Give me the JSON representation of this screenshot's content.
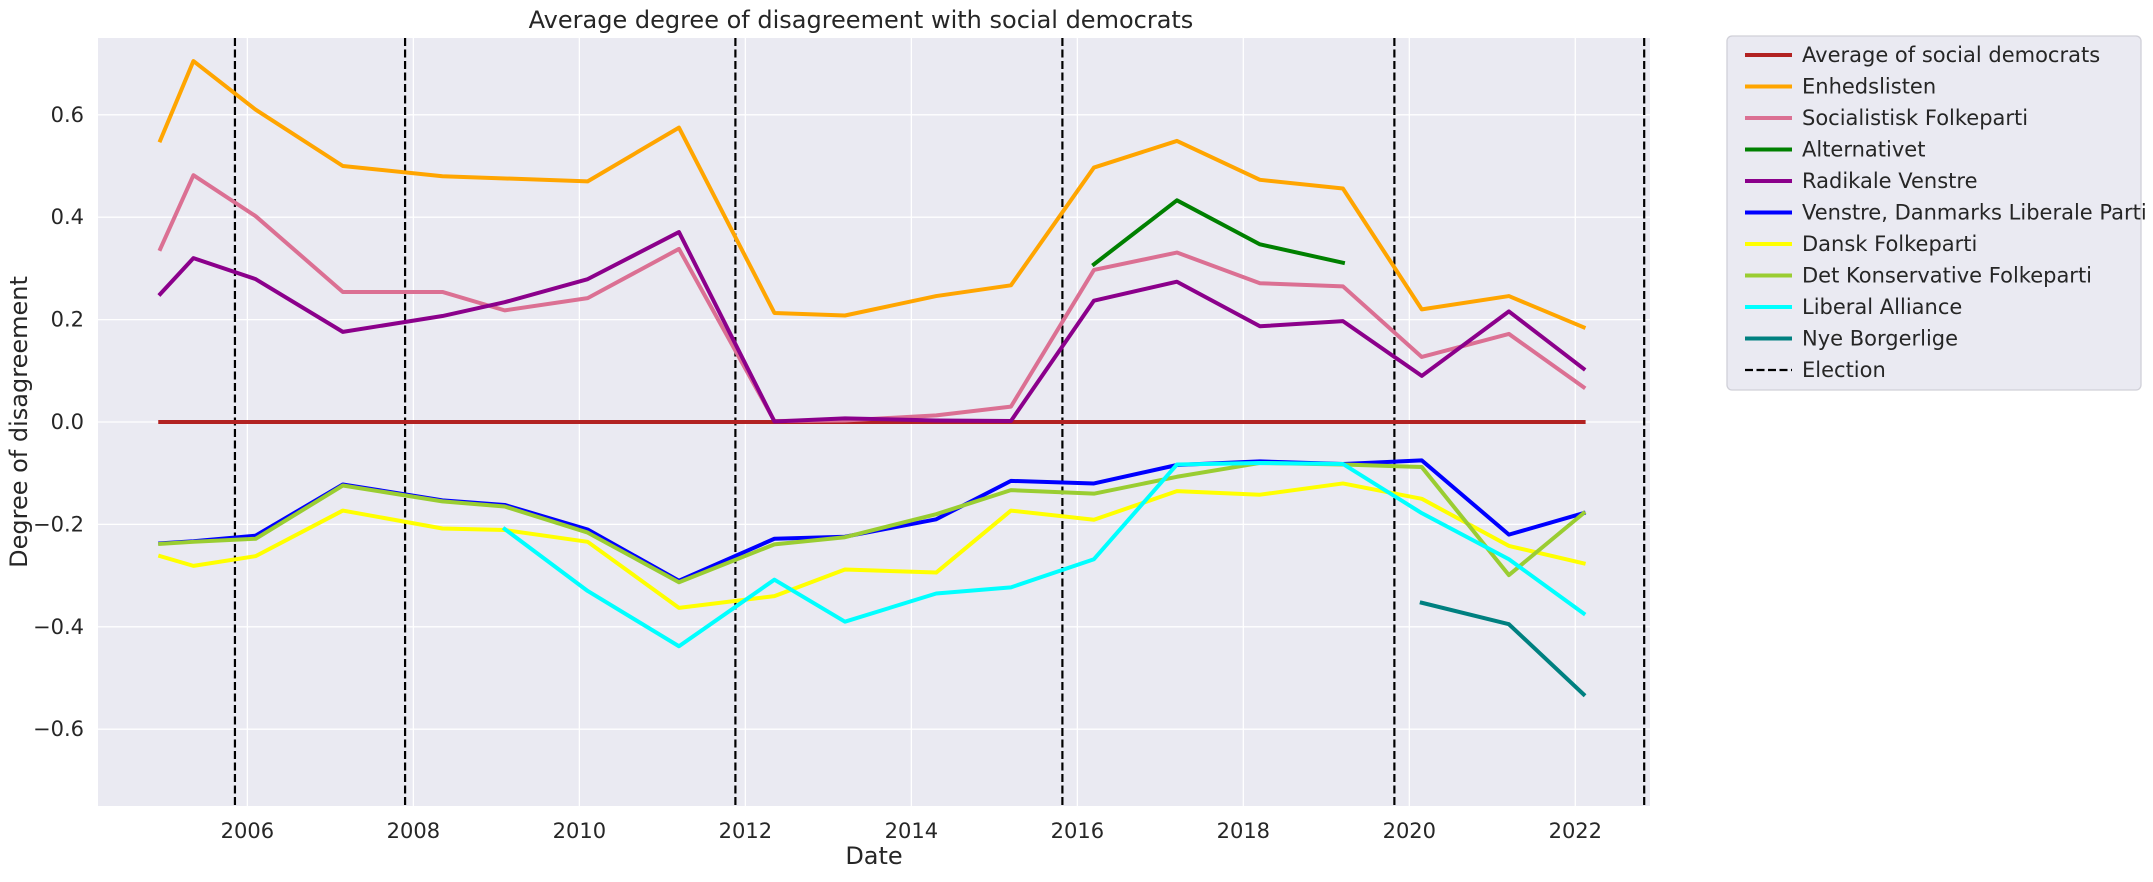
{
  "chart_data": {
    "type": "line",
    "title": "Average degree of disagreement with social democrats",
    "xlabel": "Date",
    "ylabel": "Degree of disagreement",
    "xlim": [
      2004.2,
      2022.9
    ],
    "ylim": [
      -0.75,
      0.75
    ],
    "x_ticks": [
      2006,
      2008,
      2010,
      2012,
      2014,
      2016,
      2018,
      2020,
      2022
    ],
    "x_tick_labels": [
      "2006",
      "2008",
      "2010",
      "2012",
      "2014",
      "2016",
      "2018",
      "2020",
      "2022"
    ],
    "y_ticks": [
      -0.6,
      -0.4,
      -0.2,
      0.0,
      0.2,
      0.4,
      0.6
    ],
    "y_tick_labels": [
      "−0.6",
      "−0.4",
      "−0.2",
      "0.0",
      "0.2",
      "0.4",
      "0.6"
    ],
    "grid": true,
    "legend_position": "outside-right",
    "background_color": "#eaeaf2",
    "grid_color": "#ffffff",
    "series": [
      {
        "name": "Average of social democrats",
        "color": "#b22222",
        "points": [
          [
            2004.95,
            0.0
          ],
          [
            2022.1,
            0.0
          ]
        ]
      },
      {
        "name": "Enhedslisten",
        "color": "#ffa500",
        "points": [
          [
            2004.95,
            0.55
          ],
          [
            2005.35,
            0.705
          ],
          [
            2006.1,
            0.61
          ],
          [
            2007.15,
            0.5
          ],
          [
            2008.35,
            0.48
          ],
          [
            2010.1,
            0.47
          ],
          [
            2011.2,
            0.575
          ],
          [
            2012.35,
            0.213
          ],
          [
            2013.2,
            0.208
          ],
          [
            2014.3,
            0.246
          ],
          [
            2015.2,
            0.267
          ],
          [
            2016.2,
            0.497
          ],
          [
            2017.2,
            0.549
          ],
          [
            2018.2,
            0.473
          ],
          [
            2019.2,
            0.456
          ],
          [
            2020.15,
            0.22
          ],
          [
            2021.2,
            0.246
          ],
          [
            2022.1,
            0.185
          ]
        ]
      },
      {
        "name": "Socialistisk Folkeparti",
        "color": "#db7093",
        "points": [
          [
            2004.95,
            0.338
          ],
          [
            2005.35,
            0.482
          ],
          [
            2006.1,
            0.402
          ],
          [
            2007.15,
            0.254
          ],
          [
            2008.35,
            0.254
          ],
          [
            2009.1,
            0.218
          ],
          [
            2010.1,
            0.242
          ],
          [
            2011.2,
            0.338
          ],
          [
            2012.35,
            0.002
          ],
          [
            2013.2,
            0.003
          ],
          [
            2014.3,
            0.013
          ],
          [
            2015.2,
            0.03
          ],
          [
            2016.2,
            0.297
          ],
          [
            2017.2,
            0.331
          ],
          [
            2018.2,
            0.271
          ],
          [
            2019.2,
            0.265
          ],
          [
            2020.15,
            0.127
          ],
          [
            2021.2,
            0.172
          ],
          [
            2022.1,
            0.068
          ]
        ]
      },
      {
        "name": "Alternativet",
        "color": "#008000",
        "points": [
          [
            2016.2,
            0.308
          ],
          [
            2017.2,
            0.433
          ],
          [
            2018.2,
            0.347
          ],
          [
            2019.2,
            0.311
          ]
        ]
      },
      {
        "name": "Radikale Venstre",
        "color": "#8b008b",
        "points": [
          [
            2004.95,
            0.25
          ],
          [
            2005.35,
            0.32
          ],
          [
            2006.1,
            0.279
          ],
          [
            2007.15,
            0.176
          ],
          [
            2008.35,
            0.207
          ],
          [
            2009.1,
            0.234
          ],
          [
            2010.1,
            0.279
          ],
          [
            2011.2,
            0.371
          ],
          [
            2012.35,
            0.001
          ],
          [
            2013.2,
            0.007
          ],
          [
            2014.3,
            0.003
          ],
          [
            2015.2,
            0.002
          ],
          [
            2016.2,
            0.237
          ],
          [
            2017.2,
            0.274
          ],
          [
            2018.2,
            0.187
          ],
          [
            2019.2,
            0.197
          ],
          [
            2020.15,
            0.09
          ],
          [
            2021.2,
            0.216
          ],
          [
            2022.1,
            0.104
          ]
        ]
      },
      {
        "name": "Venstre, Danmarks Liberale Parti",
        "color": "#0000ff",
        "points": [
          [
            2004.95,
            -0.237
          ],
          [
            2005.35,
            -0.233
          ],
          [
            2006.1,
            -0.222
          ],
          [
            2007.15,
            -0.122
          ],
          [
            2008.35,
            -0.153
          ],
          [
            2009.1,
            -0.162
          ],
          [
            2010.1,
            -0.21
          ],
          [
            2011.2,
            -0.31
          ],
          [
            2012.35,
            -0.228
          ],
          [
            2013.2,
            -0.224
          ],
          [
            2014.3,
            -0.19
          ],
          [
            2015.2,
            -0.115
          ],
          [
            2016.2,
            -0.12
          ],
          [
            2017.2,
            -0.084
          ],
          [
            2018.2,
            -0.077
          ],
          [
            2019.2,
            -0.082
          ],
          [
            2020.15,
            -0.075
          ],
          [
            2021.2,
            -0.22
          ],
          [
            2022.1,
            -0.178
          ]
        ]
      },
      {
        "name": "Dansk Folkeparti",
        "color": "#ffff00",
        "points": [
          [
            2004.95,
            -0.262
          ],
          [
            2005.35,
            -0.281
          ],
          [
            2006.1,
            -0.262
          ],
          [
            2007.15,
            -0.173
          ],
          [
            2008.35,
            -0.208
          ],
          [
            2009.1,
            -0.211
          ],
          [
            2010.1,
            -0.234
          ],
          [
            2011.2,
            -0.363
          ],
          [
            2012.35,
            -0.34
          ],
          [
            2013.2,
            -0.288
          ],
          [
            2014.3,
            -0.294
          ],
          [
            2015.2,
            -0.173
          ],
          [
            2016.2,
            -0.191
          ],
          [
            2017.2,
            -0.135
          ],
          [
            2018.2,
            -0.142
          ],
          [
            2019.2,
            -0.12
          ],
          [
            2020.15,
            -0.15
          ],
          [
            2021.2,
            -0.242
          ],
          [
            2022.1,
            -0.276
          ]
        ]
      },
      {
        "name": "Det Konservative Folkeparti",
        "color": "#9acd32",
        "points": [
          [
            2004.95,
            -0.238
          ],
          [
            2005.35,
            -0.234
          ],
          [
            2006.1,
            -0.228
          ],
          [
            2007.15,
            -0.124
          ],
          [
            2008.35,
            -0.155
          ],
          [
            2009.1,
            -0.165
          ],
          [
            2010.1,
            -0.216
          ],
          [
            2011.2,
            -0.313
          ],
          [
            2012.35,
            -0.239
          ],
          [
            2013.2,
            -0.225
          ],
          [
            2014.3,
            -0.18
          ],
          [
            2015.2,
            -0.133
          ],
          [
            2016.2,
            -0.14
          ],
          [
            2017.2,
            -0.107
          ],
          [
            2018.2,
            -0.08
          ],
          [
            2019.2,
            -0.083
          ],
          [
            2020.15,
            -0.088
          ],
          [
            2021.2,
            -0.299
          ],
          [
            2022.1,
            -0.178
          ]
        ]
      },
      {
        "name": "Liberal Alliance",
        "color": "#00ffff",
        "points": [
          [
            2009.1,
            -0.209
          ],
          [
            2010.1,
            -0.33
          ],
          [
            2011.2,
            -0.438
          ],
          [
            2012.35,
            -0.308
          ],
          [
            2013.2,
            -0.39
          ],
          [
            2014.3,
            -0.335
          ],
          [
            2015.2,
            -0.323
          ],
          [
            2016.2,
            -0.268
          ],
          [
            2017.2,
            -0.083
          ],
          [
            2018.2,
            -0.08
          ],
          [
            2019.2,
            -0.082
          ],
          [
            2020.15,
            -0.178
          ],
          [
            2021.2,
            -0.268
          ],
          [
            2022.1,
            -0.374
          ]
        ]
      },
      {
        "name": "Nye Borgerlige",
        "color": "#008080",
        "points": [
          [
            2020.15,
            -0.353
          ],
          [
            2021.2,
            -0.395
          ],
          [
            2022.1,
            -0.532
          ]
        ]
      }
    ],
    "elections": {
      "name": "Election",
      "color": "#000000",
      "x": [
        2005.85,
        2007.9,
        2011.88,
        2015.82,
        2019.82,
        2022.83
      ]
    }
  }
}
